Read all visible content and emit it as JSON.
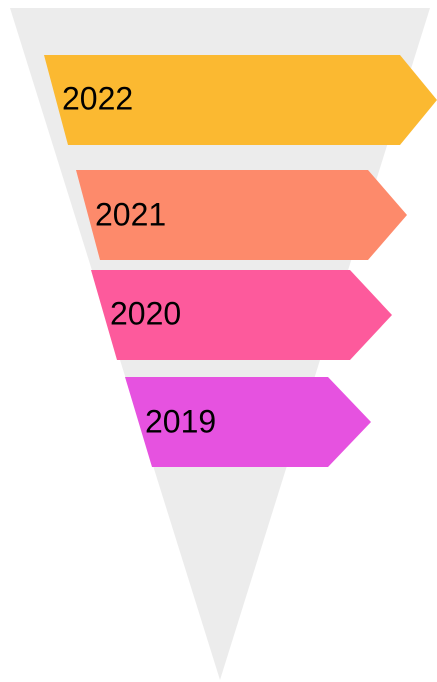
{
  "items": [
    {
      "label": "2022"
    },
    {
      "label": "2021"
    },
    {
      "label": "2020"
    },
    {
      "label": "2019"
    }
  ]
}
